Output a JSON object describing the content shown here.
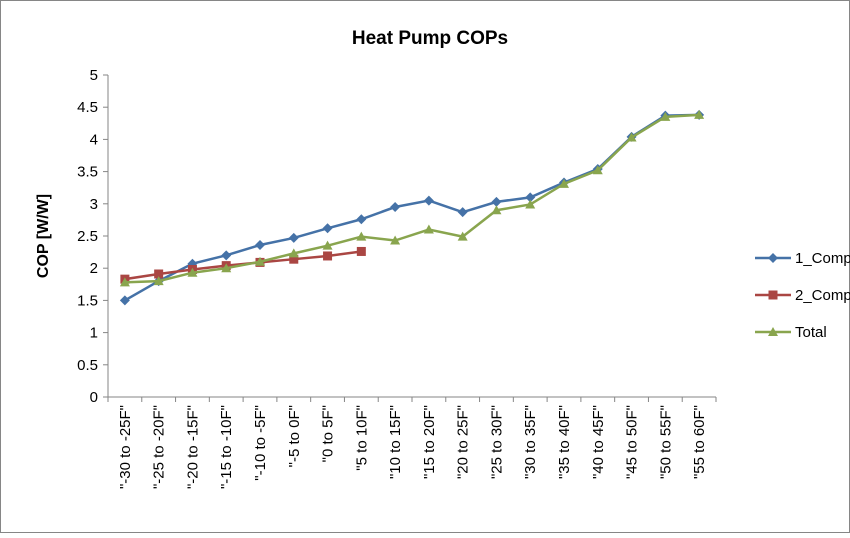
{
  "chart_data": {
    "type": "line",
    "title": "Heat Pump COPs",
    "y_label": "COP [W/W]",
    "categories": [
      "\"-30 to -25F\"",
      "\"-25 to -20F\"",
      "\"-20 to -15F\"",
      "\"-15 to -10F\"",
      "\"-10 to -5F\"",
      "\"-5 to 0F\"",
      "\"0 to 5F\"",
      "\"5 to 10F\"",
      "\"10 to 15F\"",
      "\"15 to 20F\"",
      "\"20 to 25F\"",
      "\"25 to 30F\"",
      "\"30 to 35F\"",
      "\"35 to 40F\"",
      "\"40 to 45F\"",
      "\"45 to 50F\"",
      "\"50 to 55F\"",
      "\"55 to 60F\""
    ],
    "series": [
      {
        "name": "1_Comp",
        "color": "#4572a7",
        "marker": "diamond",
        "values": [
          1.5,
          1.8,
          2.07,
          2.2,
          2.36,
          2.47,
          2.62,
          2.76,
          2.95,
          3.05,
          2.87,
          3.03,
          3.1,
          3.33,
          3.54,
          4.04,
          4.37,
          4.38
        ]
      },
      {
        "name": "2_Comp",
        "color": "#aa4643",
        "marker": "square",
        "values": [
          1.83,
          1.91,
          1.98,
          2.04,
          2.09,
          2.14,
          2.19,
          2.26,
          null,
          null,
          null,
          null,
          null,
          null,
          null,
          null,
          null,
          null
        ]
      },
      {
        "name": "Total",
        "color": "#89a54e",
        "marker": "triangle",
        "values": [
          1.78,
          1.8,
          1.93,
          2.0,
          2.1,
          2.23,
          2.35,
          2.49,
          2.43,
          2.6,
          2.49,
          2.9,
          2.99,
          3.31,
          3.52,
          4.03,
          4.35,
          4.38
        ]
      }
    ],
    "ylim": [
      0,
      5
    ],
    "yticks": [
      0,
      0.5,
      1,
      1.5,
      2,
      2.5,
      3,
      3.5,
      4,
      4.5,
      5
    ],
    "grid": false,
    "legend": "right"
  }
}
